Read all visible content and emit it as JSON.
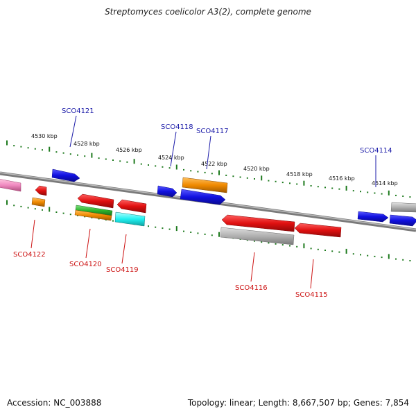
{
  "title": "Streptomyces coelicolor A3(2), complete genome",
  "accession": "Accession: NC_003888",
  "topology": "Topology: linear; Length: 8,667,507 bp; Genes: 7,854",
  "scale_labels": [
    "4530 kbp",
    "4528 kbp",
    "4526 kbp",
    "4524 kbp",
    "4522 kbp",
    "4520 kbp",
    "4518 kbp",
    "4516 kbp",
    "4514 kbp"
  ],
  "forward_gene_labels": [
    "SCO4121",
    "SCO4118",
    "SCO4117",
    "SCO4114"
  ],
  "reverse_gene_labels": [
    "SCO4122",
    "SCO4120",
    "SCO4119",
    "SCO4116",
    "SCO4115"
  ],
  "colors": {
    "backbone": "#7a7a7a",
    "scale_ticks": "#1e7a1e",
    "forward_label": "#1a1aa8",
    "reverse_label": "#cc1111",
    "blue_gene": "#1010e0",
    "red_gene": "#e01010",
    "orange_gene": "#f08a00",
    "green_gene": "#2db52d",
    "cyan_gene": "#20f0f0",
    "gray_gene": "#b0b0b0",
    "pink_gene": "#f08ac0"
  }
}
